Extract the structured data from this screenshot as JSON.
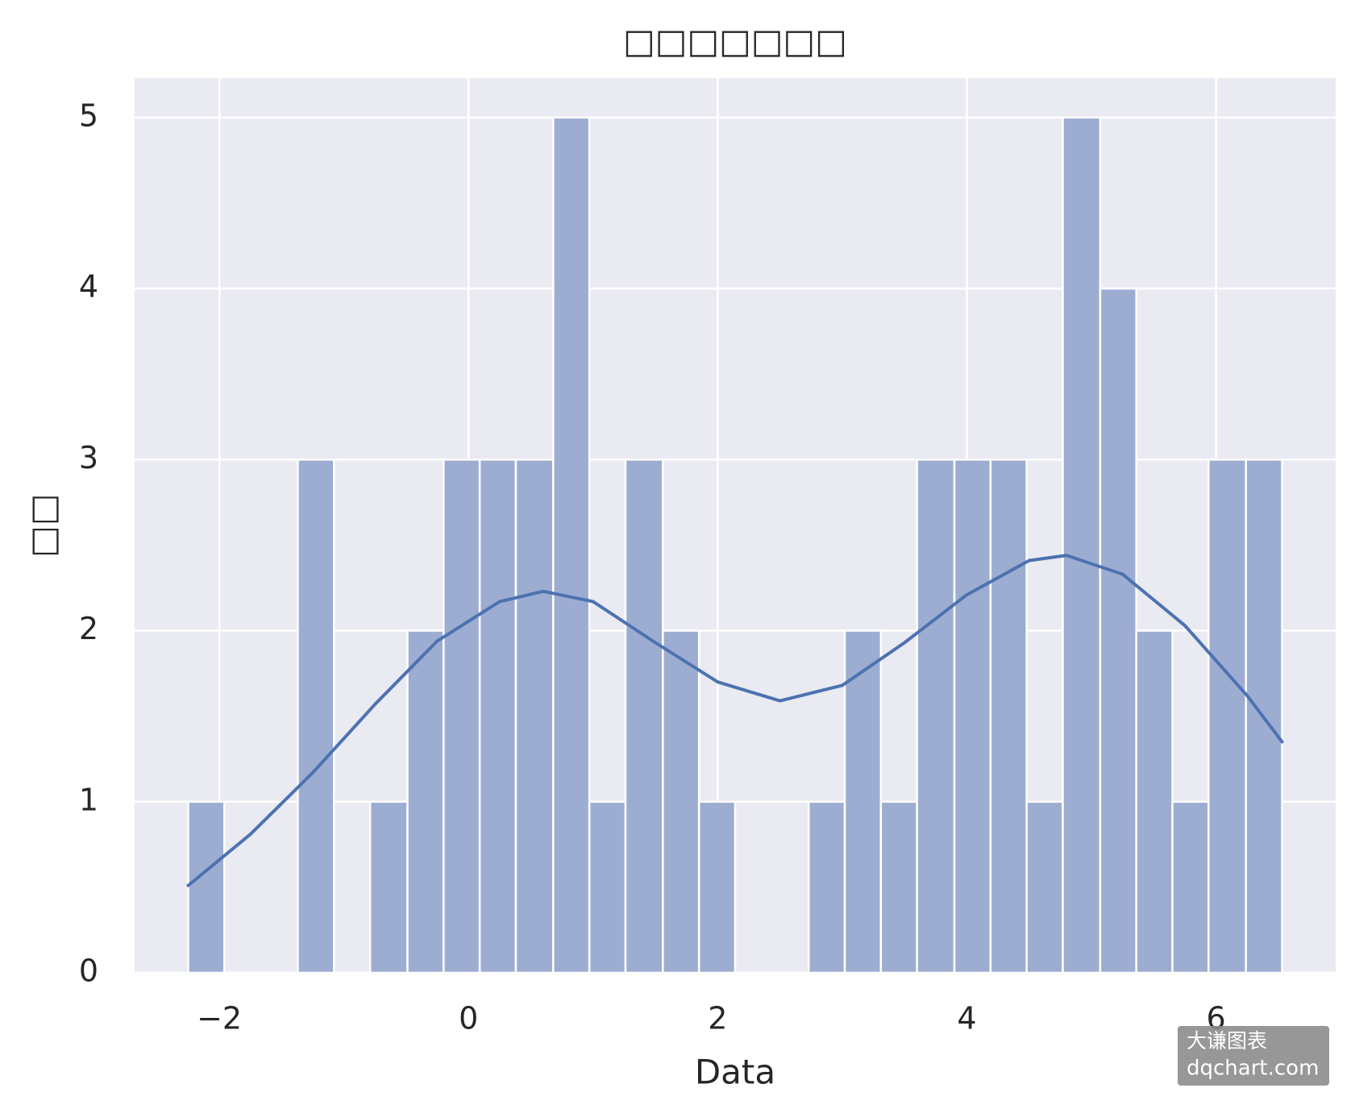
{
  "chart_data": {
    "type": "histogram",
    "title": "□□□□□□□",
    "x_label": "Data",
    "y_label": "□□",
    "bins": [
      -2.25,
      -1.96,
      -1.66,
      -1.37,
      -1.08,
      -0.79,
      -0.49,
      -0.2,
      0.09,
      0.38,
      0.68,
      0.97,
      1.26,
      1.56,
      1.85,
      2.14,
      2.43,
      2.73,
      3.02,
      3.31,
      3.6,
      3.9,
      4.19,
      4.48,
      4.77,
      5.07,
      5.36,
      5.65,
      5.94,
      6.24,
      6.53
    ],
    "counts": [
      1,
      0,
      0,
      3,
      0,
      1,
      2,
      3,
      3,
      3,
      5,
      1,
      3,
      2,
      1,
      0,
      0,
      1,
      2,
      1,
      3,
      3,
      3,
      1,
      5,
      4,
      2,
      1,
      3,
      3
    ],
    "color": "#9dadd2",
    "kde": {
      "color": "#4c72b0",
      "x": [
        -2.25,
        -1.75,
        -1.25,
        -0.75,
        -0.25,
        0.25,
        0.6,
        1.0,
        1.5,
        2.0,
        2.5,
        3.0,
        3.5,
        4.0,
        4.5,
        4.8,
        5.25,
        5.75,
        6.25,
        6.53
      ],
      "y": [
        0.51,
        0.81,
        1.17,
        1.57,
        1.94,
        2.17,
        2.23,
        2.17,
        1.93,
        1.7,
        1.59,
        1.68,
        1.93,
        2.21,
        2.41,
        2.44,
        2.33,
        2.03,
        1.62,
        1.35
      ]
    },
    "xlim": [
      -2.68,
      6.96
    ],
    "ylim": [
      0,
      5.23
    ],
    "xticks": [
      {
        "value": -2,
        "label": "−2"
      },
      0,
      2,
      4,
      6
    ],
    "yticks": [
      0,
      1,
      2,
      3,
      4,
      5
    ],
    "grid": true,
    "watermark": [
      "大谦图表",
      "dqchart.com"
    ]
  }
}
